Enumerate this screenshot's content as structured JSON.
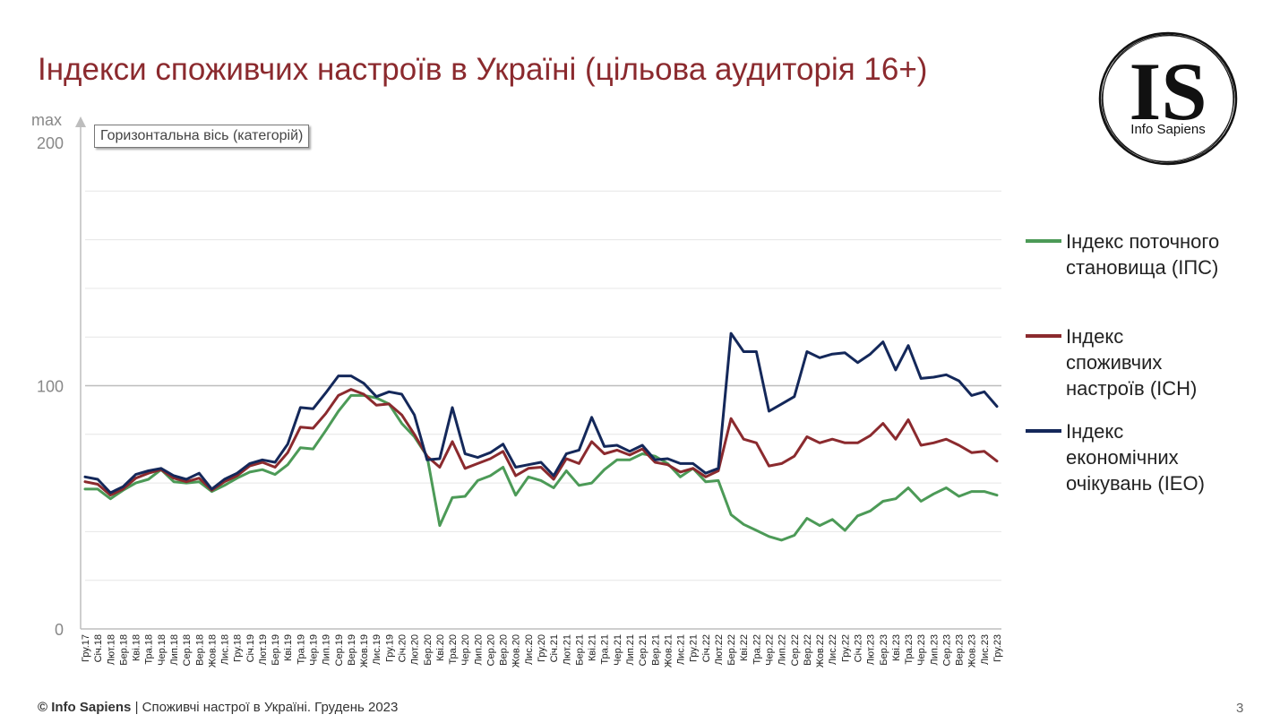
{
  "title": "Індекси споживчих настроїв в Україні (цільова аудиторія 16+)",
  "logo": {
    "mark": "IS",
    "name": "Info Sapiens"
  },
  "tooltip": "Горизонтальна вісь (категорій)",
  "footer": {
    "brand": "© Info Sapiens",
    "text": " | Споживчі настрої в Україні. Грудень 2023"
  },
  "page_number": "3",
  "colors": {
    "title": "#8b2a2e",
    "ips": "#4c9a57",
    "ich": "#8b2a2e",
    "ieo": "#14285a"
  },
  "chart_data": {
    "type": "line",
    "ylabel_top": "max",
    "yticks": [
      "0",
      "100",
      "200"
    ],
    "ylim": [
      0,
      200
    ],
    "grid": true,
    "legend_position": "right",
    "x": [
      "Гру.17",
      "Січ.18",
      "Лют.18",
      "Бер.18",
      "Кві.18",
      "Тра.18",
      "Чер.18",
      "Лип.18",
      "Сер.18",
      "Вер.18",
      "Жов.18",
      "Лис.18",
      "Гру.18",
      "Січ.19",
      "Лют.19",
      "Бер.19",
      "Кві.19",
      "Тра.19",
      "Чер.19",
      "Лип.19",
      "Сер.19",
      "Вер.19",
      "Жов.19",
      "Лис.19",
      "Гру.19",
      "Січ.20",
      "Лют.20",
      "Бер.20",
      "Кві.20",
      "Тра.20",
      "Чер.20",
      "Лип.20",
      "Сер.20",
      "Вер.20",
      "Жов.20",
      "Лис.20",
      "Гру.20",
      "Січ.21",
      "Лют.21",
      "Бер.21",
      "Кві.21",
      "Тра.21",
      "Чер.21",
      "Лип.21",
      "Сер.21",
      "Вер.21",
      "Жов.21",
      "Лис.21",
      "Гру.21",
      "Січ.22",
      "Лют.22",
      "Бер.22",
      "Кві.22",
      "Тра.22",
      "Чер.22",
      "Лип.22",
      "Сер.22",
      "Вер.22",
      "Жов.22",
      "Лис.22",
      "Гру.22",
      "Січ.23",
      "Лют.23",
      "Бер.23",
      "Кві.23",
      "Тра.23",
      "Чер.23",
      "Лип.23",
      "Сер.23",
      "Вер.23",
      "Жов.23",
      "Лис.23",
      "Гру.23"
    ],
    "series": [
      {
        "name": "Індекс поточного становища (ІПС)",
        "color": "#4c9a57",
        "values": [
          57.5,
          57.5,
          53.5,
          57,
          60,
          61.5,
          65.5,
          60.5,
          60,
          60.5,
          56.5,
          59,
          62,
          64.5,
          65.5,
          63.5,
          67.5,
          74.5,
          74,
          81.5,
          89.5,
          96,
          96,
          95,
          92.5,
          84.5,
          79,
          71,
          42.5,
          54,
          54.5,
          61,
          63,
          66.5,
          55,
          62.5,
          61,
          58,
          65,
          59,
          60,
          65.5,
          69.5,
          69.5,
          72,
          71,
          68,
          62.5,
          66,
          60.5,
          61,
          47,
          43,
          40.5,
          38,
          36.5,
          38.5,
          45.5,
          42.5,
          45,
          40.5,
          46.5,
          48.5,
          52.5,
          53.5,
          58,
          52.5,
          55.5,
          58,
          54.5,
          56.5,
          56.5,
          55
        ]
      },
      {
        "name": "Індекс споживчих настроїв (ІСН)",
        "color": "#8b2a2e",
        "values": [
          60.5,
          59.5,
          55,
          57.5,
          62,
          64,
          65.5,
          62,
          60.5,
          62,
          57,
          60.5,
          63,
          67,
          68.5,
          66.5,
          72.5,
          83,
          82.5,
          88.5,
          96,
          98.5,
          96.5,
          92,
          92.5,
          88,
          80,
          71,
          66.5,
          77,
          66,
          68,
          70,
          73,
          63,
          66,
          66.5,
          61.5,
          70,
          68,
          77,
          72,
          73.5,
          71.5,
          74,
          68.5,
          67.5,
          64.5,
          66,
          62.5,
          65,
          86.5,
          78,
          76.5,
          67,
          68,
          71,
          79,
          76.5,
          78,
          76.5,
          76.5,
          79.5,
          84.5,
          78,
          86,
          75.5,
          76.5,
          78,
          75.5,
          72.5,
          73,
          69
        ]
      },
      {
        "name": "Індекс економічних очікувань (ІЕО)",
        "color": "#14285a",
        "values": [
          62.5,
          61.5,
          56,
          58.5,
          63.5,
          65,
          66,
          63,
          61.5,
          64,
          57.5,
          61.5,
          64,
          68,
          69.5,
          68.5,
          76,
          91,
          90.5,
          97,
          104,
          104,
          101,
          95.5,
          97.5,
          96.5,
          88,
          69.5,
          70,
          91,
          72,
          70.5,
          72.5,
          76,
          66.5,
          67.5,
          68.5,
          63,
          72,
          73.5,
          87,
          75,
          75.5,
          73,
          75.5,
          69.5,
          70,
          68,
          68,
          64,
          66,
          121.5,
          114,
          114,
          89.5,
          92.5,
          95.5,
          114,
          111.5,
          113,
          113.5,
          109.5,
          113,
          118,
          106.5,
          116.5,
          103,
          103.5,
          104.5,
          102,
          96,
          97.5,
          91.5
        ]
      }
    ]
  },
  "legend": [
    {
      "label_lines": [
        "Індекс поточного",
        "становища (ІПС)"
      ]
    },
    {
      "label_lines": [
        "Індекс",
        "споживчих",
        "настроїв (ІСН)"
      ]
    },
    {
      "label_lines": [
        "Індекс",
        "економічних",
        "очікувань (ІЕО)"
      ]
    }
  ]
}
